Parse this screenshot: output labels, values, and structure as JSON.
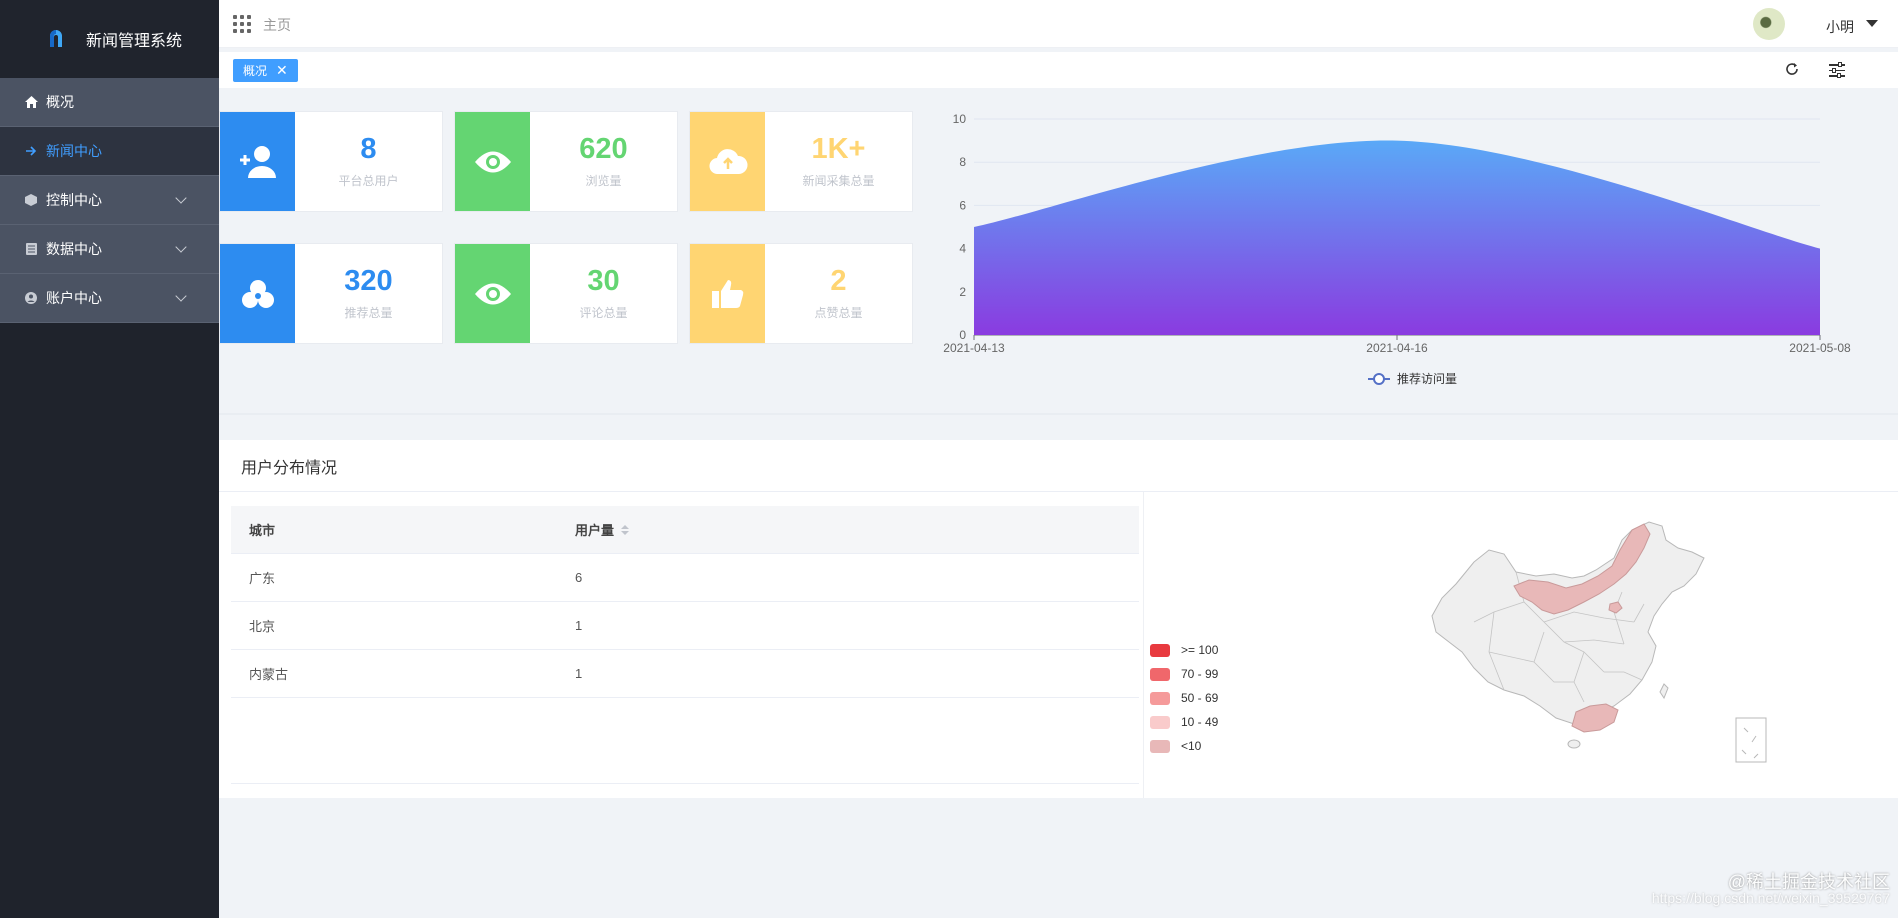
{
  "app": {
    "title": "新闻管理系统"
  },
  "sidebar": {
    "items": [
      {
        "label": "概况",
        "icon": "home-icon"
      },
      {
        "label": "新闻中心",
        "icon": "arrow-right-icon",
        "active": true
      },
      {
        "label": "控制中心",
        "icon": "cube-icon",
        "expandable": true
      },
      {
        "label": "数据中心",
        "icon": "book-icon",
        "expandable": true
      },
      {
        "label": "账户中心",
        "icon": "user-circle-icon",
        "expandable": true
      }
    ]
  },
  "header": {
    "breadcrumb": "主页",
    "user_name": "小明"
  },
  "tabs": [
    {
      "label": "概况",
      "close": "✕"
    }
  ],
  "stats": [
    {
      "value": "8",
      "label": "平台总用户",
      "color": "blue",
      "icon": "add-user-icon"
    },
    {
      "value": "620",
      "label": "浏览量",
      "color": "green",
      "icon": "eye-icon"
    },
    {
      "value": "1K+",
      "label": "新闻采集总量",
      "color": "yellow",
      "icon": "cloud-upload-icon"
    },
    {
      "value": "320",
      "label": "推荐总量",
      "color": "blue",
      "icon": "circles-icon"
    },
    {
      "value": "30",
      "label": "评论总量",
      "color": "green",
      "icon": "eye-icon"
    },
    {
      "value": "2",
      "label": "点赞总量",
      "color": "yellow",
      "icon": "thumbs-up-icon"
    }
  ],
  "colors": {
    "blue": "#2d8cf0",
    "green": "#64d572",
    "yellow": "#ffd572",
    "area_top": "#5aa9f7",
    "area_bottom": "#8a3be0",
    "sidebar": "#1f232c",
    "accent": "#409eff"
  },
  "chart_data": {
    "type": "area",
    "x": [
      "2021-04-13",
      "2021-04-16",
      "2021-05-08"
    ],
    "series": [
      {
        "name": "推荐访问量",
        "values": [
          5,
          9,
          4
        ]
      }
    ],
    "ylim": [
      0,
      10
    ],
    "yticks": [
      "0",
      "2",
      "4",
      "6",
      "8",
      "10"
    ],
    "smooth": true,
    "grid": true,
    "legend": "bottom-center"
  },
  "distribution": {
    "title": "用户分布情况",
    "columns": [
      "城市",
      "用户量"
    ],
    "rows": [
      {
        "city": "广东",
        "count": "6"
      },
      {
        "city": "北京",
        "count": "1"
      },
      {
        "city": "内蒙古",
        "count": "1"
      }
    ],
    "legend": [
      {
        "label": ">= 100",
        "color": "#e83a3f"
      },
      {
        "label": "70 - 99",
        "color": "#f0676b"
      },
      {
        "label": "50 - 69",
        "color": "#f59a9a"
      },
      {
        "label": "10 - 49",
        "color": "#f9cbcb"
      },
      {
        "label": "<10",
        "color": "#e8b8b8"
      }
    ]
  },
  "watermark": {
    "text": "@稀土掘金技术社区",
    "url": "https://blog.csdn.net/weixin_39529767"
  }
}
